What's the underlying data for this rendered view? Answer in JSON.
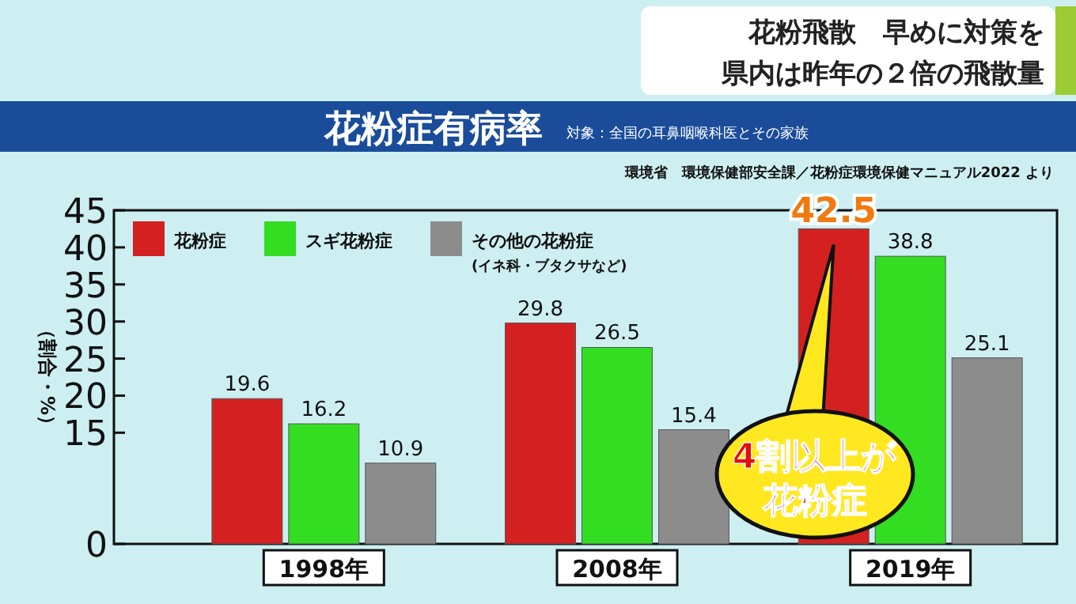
{
  "chart_data": {
    "type": "bar",
    "title": "花粉症有病率",
    "subtitle": "対象：全国の耳鼻咽喉科医とその家族",
    "annotations": [
      "花粉飛散　早めに対策を",
      "県内は昨年の２倍の飛散量",
      "環境省　環境保健部安全課／花粉症環境保健マニュアル2022 より",
      "4割以上が花粉症"
    ],
    "ylabel": "（割合・%）",
    "categories": [
      "1998年",
      "2008年",
      "2019年"
    ],
    "series": [
      {
        "name": "花粉症",
        "color": "#d42020",
        "values": [
          19.6,
          29.8,
          42.5
        ]
      },
      {
        "name": "スギ花粉症",
        "color": "#33dd22",
        "values": [
          16.2,
          26.5,
          38.8
        ]
      },
      {
        "name": "その他の花粉症\n(イネ科・ブタクサなど)",
        "color": "#8c8c8c",
        "values": [
          10.9,
          15.4,
          25.1
        ]
      }
    ],
    "ylim": [
      0,
      45
    ],
    "yticks": [
      0,
      15,
      20,
      25,
      30,
      35,
      40,
      45
    ],
    "data_labels": true,
    "legend": "top left",
    "grid": false
  }
}
